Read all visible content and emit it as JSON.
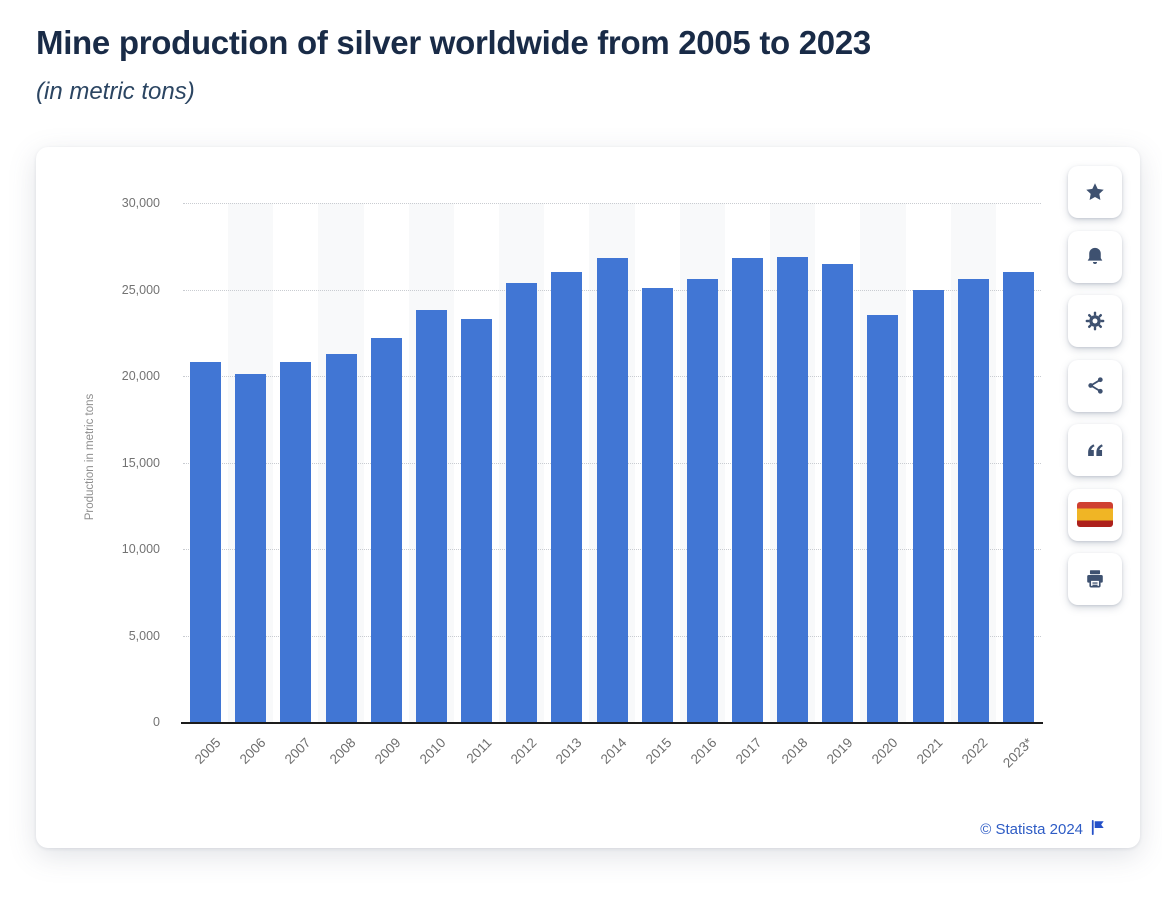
{
  "header": {
    "title": "Mine production of silver worldwide from 2005 to 2023",
    "subtitle": "(in metric tons)"
  },
  "chart_data": {
    "type": "bar",
    "title": "Mine production of silver worldwide from 2005 to 2023",
    "subtitle": "(in metric tons)",
    "categories": [
      "2005",
      "2006",
      "2007",
      "2008",
      "2009",
      "2010",
      "2011",
      "2012",
      "2013",
      "2014",
      "2015",
      "2016",
      "2017",
      "2018",
      "2019",
      "2020",
      "2021",
      "2022",
      "2023*"
    ],
    "values": [
      20800,
      20100,
      20800,
      21300,
      22200,
      23800,
      23300,
      25400,
      26000,
      26800,
      25100,
      25600,
      26800,
      26900,
      26500,
      23500,
      25000,
      25600,
      26000
    ],
    "xlabel": "",
    "ylabel": "Production in metric tons",
    "ylim": [
      0,
      30000
    ],
    "ytick_interval": 5000,
    "ytick_labels": [
      "30,000",
      "25,000",
      "20,000",
      "15,000",
      "10,000",
      "5,000",
      "0"
    ],
    "grid": "horizontal-dotted",
    "legend": "none",
    "bar_color": "#4176d4",
    "alt_band_color": "#f8f9fa"
  },
  "toolbar": {
    "items": [
      {
        "name": "favorite",
        "icon": "star-icon"
      },
      {
        "name": "notifications",
        "icon": "bell-icon"
      },
      {
        "name": "settings",
        "icon": "gear-icon"
      },
      {
        "name": "share",
        "icon": "share-icon"
      },
      {
        "name": "cite",
        "icon": "quote-icon"
      },
      {
        "name": "spanish-version",
        "icon": "spain-flag-icon"
      },
      {
        "name": "print",
        "icon": "printer-icon"
      }
    ]
  },
  "footer": {
    "attribution": "© Statista 2024",
    "icon": "report-flag-icon"
  },
  "colors": {
    "bar": "#4176d4",
    "band": "#f8f9fa",
    "icon": "#3e5170",
    "link": "#2e5cc5",
    "title": "#192b47",
    "subtitle": "#2b4562"
  }
}
